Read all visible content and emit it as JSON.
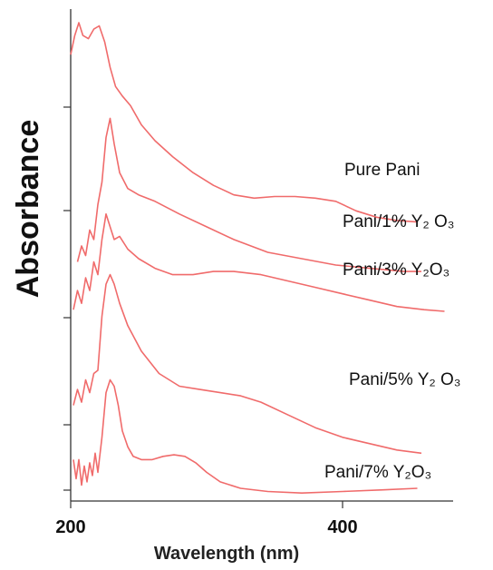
{
  "chart_data": {
    "type": "line",
    "title": "",
    "xlabel": "Wavelength (nm)",
    "ylabel": "Absorbance",
    "xlim": [
      200,
      470
    ],
    "x_ticks": [
      200,
      400
    ],
    "x_tick_labels": [
      "200",
      "400"
    ],
    "y_ticks_unlabeled": 5,
    "grid": false,
    "line_color": "#f06b6b",
    "series": [
      {
        "name": "Pure Pani",
        "points": [
          [
            200,
            0.2
          ],
          [
            203,
            0.26
          ],
          [
            206,
            0.3
          ],
          [
            209,
            0.26
          ],
          [
            213,
            0.25
          ],
          [
            217,
            0.28
          ],
          [
            221,
            0.29
          ],
          [
            225,
            0.24
          ],
          [
            229,
            0.16
          ],
          [
            233,
            0.1
          ],
          [
            238,
            0.07
          ],
          [
            244,
            0.04
          ],
          [
            252,
            -0.02
          ],
          [
            262,
            -0.07
          ],
          [
            275,
            -0.12
          ],
          [
            290,
            -0.17
          ],
          [
            305,
            -0.21
          ],
          [
            320,
            -0.24
          ],
          [
            335,
            -0.25
          ],
          [
            350,
            -0.245
          ],
          [
            365,
            -0.245
          ],
          [
            380,
            -0.25
          ],
          [
            395,
            -0.26
          ],
          [
            410,
            -0.29
          ],
          [
            425,
            -0.31
          ],
          [
            440,
            -0.32
          ],
          [
            455,
            -0.325
          ]
        ]
      },
      {
        "name": "Pani/1% Y₂ O₃",
        "points": [
          [
            205,
            -0.45
          ],
          [
            208,
            -0.4
          ],
          [
            211,
            -0.43
          ],
          [
            214,
            -0.35
          ],
          [
            217,
            -0.38
          ],
          [
            220,
            -0.27
          ],
          [
            223,
            -0.2
          ],
          [
            226,
            -0.06
          ],
          [
            229,
            0.0
          ],
          [
            232,
            -0.08
          ],
          [
            236,
            -0.17
          ],
          [
            242,
            -0.22
          ],
          [
            250,
            -0.24
          ],
          [
            262,
            -0.26
          ],
          [
            280,
            -0.3
          ],
          [
            300,
            -0.34
          ],
          [
            320,
            -0.38
          ],
          [
            345,
            -0.42
          ],
          [
            370,
            -0.44
          ],
          [
            395,
            -0.46
          ],
          [
            420,
            -0.47
          ],
          [
            445,
            -0.48
          ],
          [
            458,
            -0.48
          ]
        ]
      },
      {
        "name": "Pani/3% Y₂O₃",
        "points": [
          [
            202,
            -0.6
          ],
          [
            205,
            -0.54
          ],
          [
            208,
            -0.58
          ],
          [
            211,
            -0.5
          ],
          [
            214,
            -0.54
          ],
          [
            217,
            -0.45
          ],
          [
            220,
            -0.49
          ],
          [
            223,
            -0.38
          ],
          [
            226,
            -0.3
          ],
          [
            229,
            -0.34
          ],
          [
            232,
            -0.38
          ],
          [
            236,
            -0.37
          ],
          [
            242,
            -0.41
          ],
          [
            250,
            -0.44
          ],
          [
            262,
            -0.47
          ],
          [
            275,
            -0.49
          ],
          [
            290,
            -0.49
          ],
          [
            305,
            -0.48
          ],
          [
            320,
            -0.48
          ],
          [
            340,
            -0.49
          ],
          [
            360,
            -0.51
          ],
          [
            380,
            -0.53
          ],
          [
            400,
            -0.55
          ],
          [
            420,
            -0.57
          ],
          [
            440,
            -0.59
          ],
          [
            460,
            -0.6
          ],
          [
            475,
            -0.605
          ]
        ]
      },
      {
        "name": "Pani/5% Y₂ O₃",
        "points": [
          [
            202,
            -0.9
          ],
          [
            205,
            -0.85
          ],
          [
            208,
            -0.89
          ],
          [
            211,
            -0.82
          ],
          [
            214,
            -0.86
          ],
          [
            217,
            -0.8
          ],
          [
            220,
            -0.79
          ],
          [
            223,
            -0.62
          ],
          [
            226,
            -0.52
          ],
          [
            229,
            -0.49
          ],
          [
            232,
            -0.52
          ],
          [
            236,
            -0.58
          ],
          [
            242,
            -0.65
          ],
          [
            252,
            -0.73
          ],
          [
            265,
            -0.8
          ],
          [
            280,
            -0.84
          ],
          [
            295,
            -0.85
          ],
          [
            310,
            -0.86
          ],
          [
            325,
            -0.87
          ],
          [
            340,
            -0.89
          ],
          [
            360,
            -0.93
          ],
          [
            380,
            -0.97
          ],
          [
            400,
            -1.0
          ],
          [
            420,
            -1.02
          ],
          [
            440,
            -1.04
          ],
          [
            458,
            -1.05
          ]
        ]
      },
      {
        "name": "Pani/7% Y₂O₃",
        "points": [
          [
            202,
            -1.07
          ],
          [
            204,
            -1.13
          ],
          [
            206,
            -1.07
          ],
          [
            208,
            -1.15
          ],
          [
            210,
            -1.09
          ],
          [
            212,
            -1.14
          ],
          [
            214,
            -1.08
          ],
          [
            216,
            -1.12
          ],
          [
            218,
            -1.05
          ],
          [
            220,
            -1.11
          ],
          [
            223,
            -1.0
          ],
          [
            226,
            -0.86
          ],
          [
            229,
            -0.82
          ],
          [
            232,
            -0.84
          ],
          [
            235,
            -0.9
          ],
          [
            238,
            -0.98
          ],
          [
            242,
            -1.03
          ],
          [
            246,
            -1.06
          ],
          [
            252,
            -1.07
          ],
          [
            260,
            -1.07
          ],
          [
            268,
            -1.06
          ],
          [
            276,
            -1.055
          ],
          [
            284,
            -1.06
          ],
          [
            292,
            -1.08
          ],
          [
            300,
            -1.11
          ],
          [
            310,
            -1.14
          ],
          [
            325,
            -1.16
          ],
          [
            345,
            -1.17
          ],
          [
            370,
            -1.175
          ],
          [
            400,
            -1.17
          ],
          [
            430,
            -1.165
          ],
          [
            455,
            -1.16
          ]
        ]
      }
    ],
    "series_label_positions": "right-of-curves"
  }
}
